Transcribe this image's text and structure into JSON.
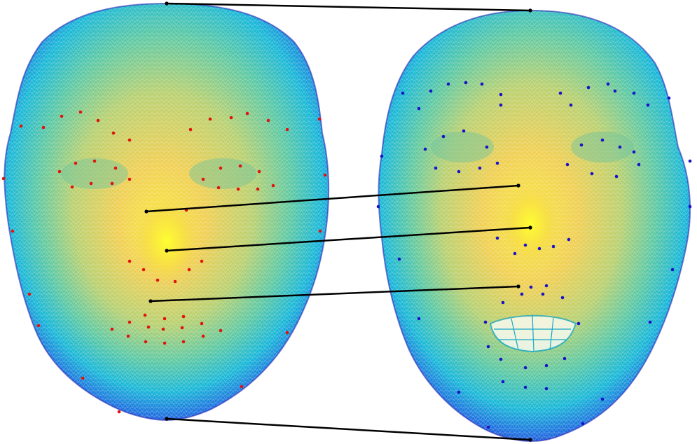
{
  "figure": {
    "left_face": {
      "landmark_color": "#e0140c",
      "landmark_count": 68
    },
    "right_face": {
      "landmark_color": "#1a12c8",
      "landmark_count": 68
    },
    "correspondence_line_color": "#000000",
    "correspondence_count": 5,
    "mesh_colormap": [
      "#2a1fb0",
      "#1f6fe0",
      "#19b8d8",
      "#45c9a8",
      "#a6cf6e",
      "#f0cf52",
      "#fbe93a"
    ]
  }
}
